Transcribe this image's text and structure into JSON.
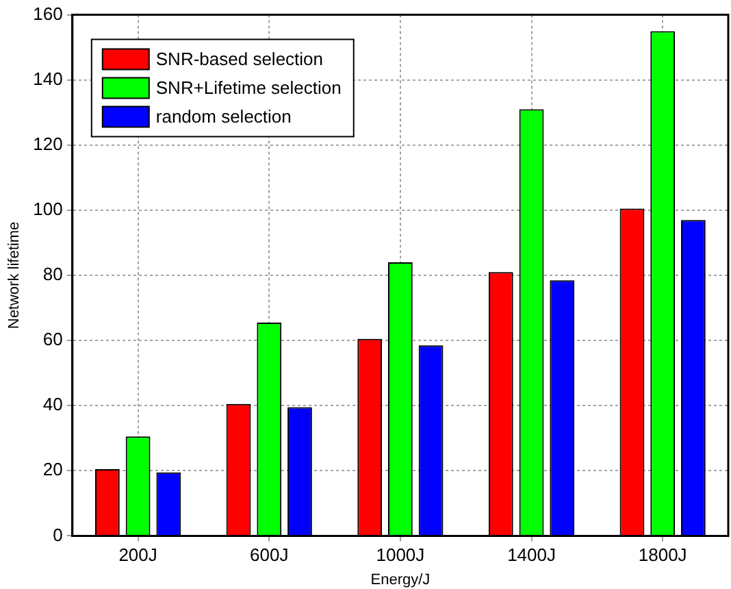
{
  "chart_data": {
    "type": "bar",
    "xlabel": "Energy/J",
    "ylabel": "Network lifetime",
    "categories": [
      "200J",
      "600J",
      "1000J",
      "1400J",
      "1800J"
    ],
    "series": [
      {
        "name": "SNR-based selection",
        "color": "#ff0000",
        "values": [
          20.5,
          40.5,
          60.5,
          81,
          100.5
        ]
      },
      {
        "name": "SNR+Lifetime selection",
        "color": "#00ff00",
        "values": [
          30.5,
          65.5,
          84,
          131,
          155
        ]
      },
      {
        "name": "random selection",
        "color": "#0000ff",
        "values": [
          19.5,
          39.5,
          58.5,
          78.5,
          97
        ]
      }
    ],
    "ylim": [
      0,
      160
    ],
    "yticks": [
      0,
      20,
      40,
      60,
      80,
      100,
      120,
      140,
      160
    ],
    "grid": true,
    "legend": "top left"
  }
}
